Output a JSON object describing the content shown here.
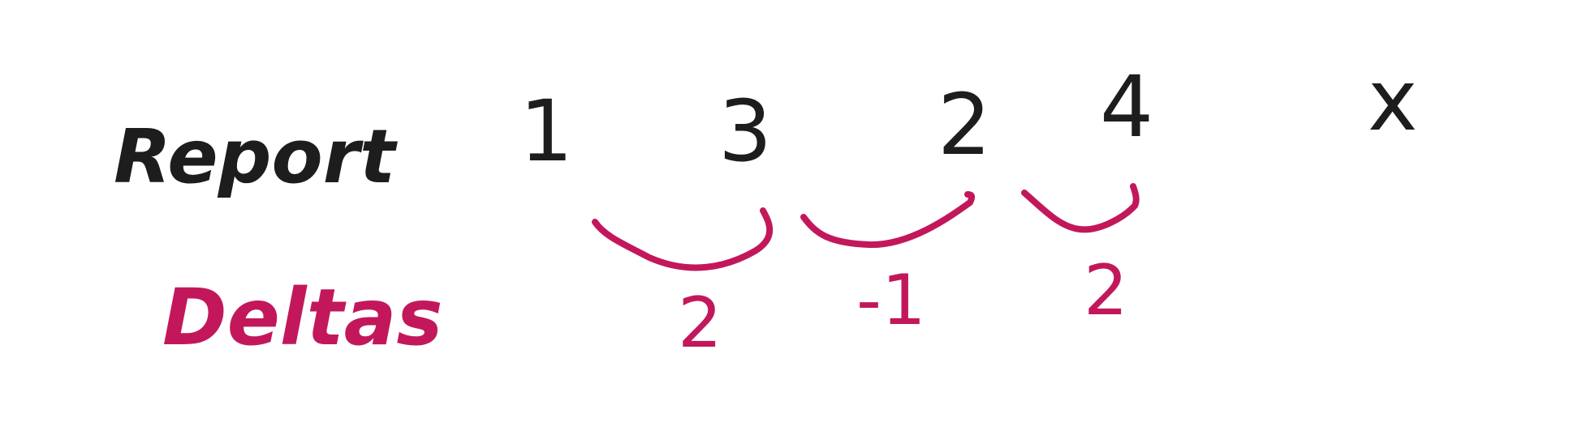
{
  "report": {
    "label": "Report",
    "values": [
      "1",
      "3",
      "2",
      "4",
      "x"
    ]
  },
  "deltas": {
    "label": "Deltas",
    "values": [
      "2",
      "-1",
      "2"
    ]
  },
  "colors": {
    "ink": "#1d1d1d",
    "accent": "#c2185b",
    "background": "#ffffff"
  }
}
